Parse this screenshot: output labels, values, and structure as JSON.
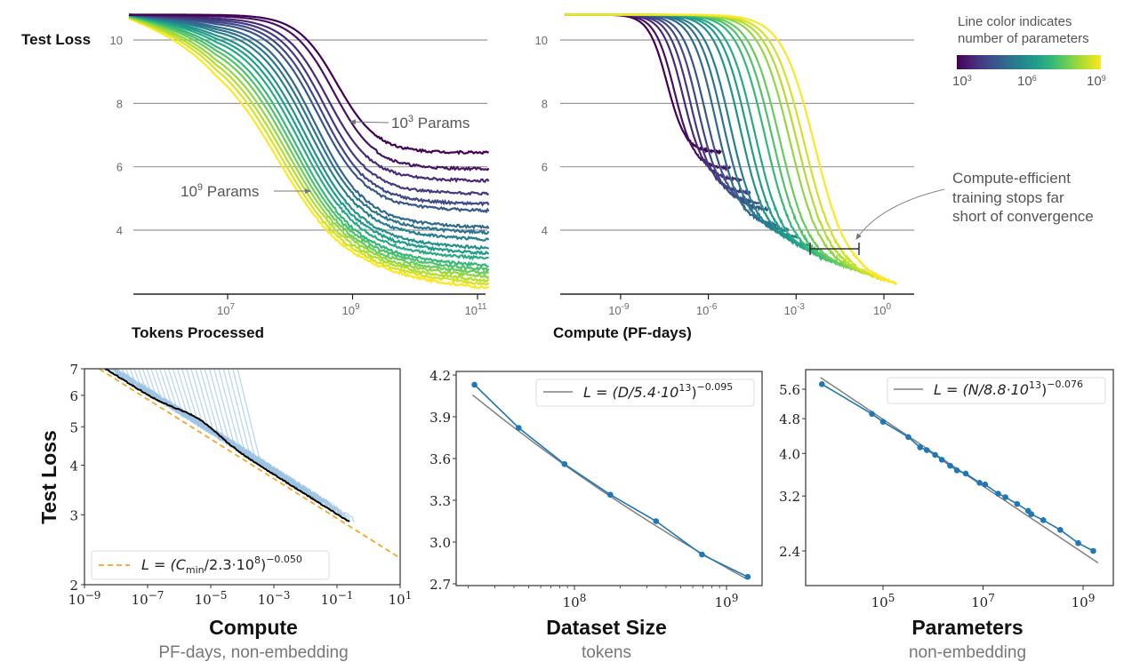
{
  "colors": {
    "viridis": [
      "#440154",
      "#482878",
      "#3e4a89",
      "#31688e",
      "#26828e",
      "#1f9e89",
      "#35b779",
      "#6ece58",
      "#b5de2b",
      "#fde725"
    ],
    "gridline": "#999999",
    "light_blue": "#9ec5e3",
    "fit_orange": "#f5a623",
    "point_blue": "#1f77b4",
    "fit_gray": "#808080",
    "black_frontier": "#000000"
  },
  "colorbar": {
    "title_line1": "Line color indicates",
    "title_line2": "number of parameters",
    "ticks": [
      {
        "base": "10",
        "exp": "3"
      },
      {
        "base": "10",
        "exp": "6"
      },
      {
        "base": "10",
        "exp": "9"
      }
    ]
  },
  "chart_data": [
    {
      "id": "tokens",
      "type": "line",
      "title": "",
      "ylabel": "Test Loss",
      "xlabel": "Tokens Processed",
      "xscale": "log",
      "xlim_log10": [
        5.3,
        11.2
      ],
      "ylim": [
        2.0,
        10.8
      ],
      "yticks": [
        10,
        8,
        6,
        4
      ],
      "xticks": [
        {
          "base": "10",
          "exp": "7",
          "log10": 7
        },
        {
          "base": "10",
          "exp": "9",
          "log10": 9
        },
        {
          "base": "10",
          "exp": "11",
          "log10": 11
        }
      ],
      "grid": "horizontal",
      "annotations": [
        {
          "text_base": "10",
          "text_exp": "3",
          "text_rest": " Params",
          "points_to": "smallest model curve"
        },
        {
          "text_base": "10",
          "text_exp": "9",
          "text_rest": " Params",
          "points_to": "largest model curve"
        }
      ],
      "series_note": "One curve per model size, colored by parameter count (10^3 to 10^9)",
      "series": [
        {
          "log10_params": 3.0,
          "final_loss": 6.45,
          "mid_log10_tokens": 8.75
        },
        {
          "log10_params": 3.3,
          "final_loss": 5.95,
          "mid_log10_tokens": 8.7
        },
        {
          "log10_params": 3.7,
          "final_loss": 5.6,
          "mid_log10_tokens": 8.6
        },
        {
          "log10_params": 4.0,
          "final_loss": 5.2,
          "mid_log10_tokens": 8.55
        },
        {
          "log10_params": 4.3,
          "final_loss": 4.9,
          "mid_log10_tokens": 8.5
        },
        {
          "log10_params": 4.6,
          "final_loss": 4.7,
          "mid_log10_tokens": 8.45
        },
        {
          "log10_params": 5.0,
          "final_loss": 4.2,
          "mid_log10_tokens": 8.4
        },
        {
          "log10_params": 5.3,
          "final_loss": 4.05,
          "mid_log10_tokens": 8.35
        },
        {
          "log10_params": 5.6,
          "final_loss": 3.85,
          "mid_log10_tokens": 8.3
        },
        {
          "log10_params": 6.0,
          "final_loss": 3.6,
          "mid_log10_tokens": 8.25
        },
        {
          "log10_params": 6.3,
          "final_loss": 3.45,
          "mid_log10_tokens": 8.2
        },
        {
          "log10_params": 6.6,
          "final_loss": 3.3,
          "mid_log10_tokens": 8.15
        },
        {
          "log10_params": 7.0,
          "final_loss": 3.1,
          "mid_log10_tokens": 8.1
        },
        {
          "log10_params": 7.3,
          "final_loss": 3.0,
          "mid_log10_tokens": 8.05
        },
        {
          "log10_params": 7.6,
          "final_loss": 2.9,
          "mid_log10_tokens": 8.0
        },
        {
          "log10_params": 8.0,
          "final_loss": 2.8,
          "mid_log10_tokens": 7.95
        },
        {
          "log10_params": 8.3,
          "final_loss": 2.7,
          "mid_log10_tokens": 7.9
        },
        {
          "log10_params": 8.6,
          "final_loss": 2.6,
          "mid_log10_tokens": 7.85
        },
        {
          "log10_params": 9.0,
          "final_loss": 2.5,
          "mid_log10_tokens": 7.8
        }
      ]
    },
    {
      "id": "compute_curves",
      "type": "line",
      "xlabel": "Compute (PF-days)",
      "xscale": "log",
      "xlim_log10": [
        -11.2,
        1.0
      ],
      "ylim": [
        2.0,
        10.8
      ],
      "yticks": [
        10,
        8,
        6,
        4
      ],
      "xticks": [
        {
          "base": "10",
          "exp": "-9",
          "log10": -9
        },
        {
          "base": "10",
          "exp": "-6",
          "log10": -6
        },
        {
          "base": "10",
          "exp": "-3",
          "log10": -3
        },
        {
          "base": "10",
          "exp": "0",
          "log10": 0
        }
      ],
      "grid": "horizontal",
      "annotation": {
        "line1": "Compute-efficient",
        "line2": "training stops far",
        "line3": "short of convergence"
      },
      "bracket": {
        "x_log10_range": [
          -2.6,
          -0.9
        ],
        "y": 3.5
      }
    },
    {
      "id": "compute_frontier",
      "type": "line",
      "ylabel": "Test Loss",
      "xlabel": "Compute",
      "xsublabel": "PF-days, non-embedding",
      "xscale": "log",
      "yscale": "log",
      "xlim_log10": [
        -9,
        1
      ],
      "ylim": [
        2,
        7
      ],
      "yticks": [
        2,
        3,
        4,
        5,
        6,
        7
      ],
      "xticks": [
        {
          "base": "10",
          "exp": "−9",
          "log10": -9
        },
        {
          "base": "10",
          "exp": "−7",
          "log10": -7
        },
        {
          "base": "10",
          "exp": "−5",
          "log10": -5
        },
        {
          "base": "10",
          "exp": "−3",
          "log10": -3
        },
        {
          "base": "10",
          "exp": "−1",
          "log10": -1
        },
        {
          "base": "10",
          "exp": "1",
          "log10": 1
        }
      ],
      "legend": {
        "location": "lower-left",
        "label": "L = (C_min/2.3·10^8)^−0.050",
        "label_main": "L = (C",
        "label_sub": "min",
        "label_mid": "/2.3·10",
        "label_sup1": "8",
        "label_close": ")",
        "label_sup2": "−0.050"
      },
      "fit": {
        "C0": 230000000.0,
        "alpha": 0.05
      },
      "frontier_log10_range": [
        -8.5,
        -0.6
      ]
    },
    {
      "id": "dataset_size",
      "type": "line",
      "xlabel": "Dataset Size",
      "xsublabel": "tokens",
      "xscale": "log",
      "xlim_log10": [
        7.25,
        9.2
      ],
      "ylim": [
        2.7,
        4.2
      ],
      "yticks": [
        "4.2",
        "3.9",
        "3.6",
        "3.3",
        "3.0",
        "2.7"
      ],
      "xticks": [
        {
          "base": "10",
          "exp": "8",
          "log10": 8
        },
        {
          "base": "10",
          "exp": "9",
          "log10": 9
        }
      ],
      "legend": {
        "location": "upper-right",
        "label_main": "L = (D/5.4·10",
        "label_sup1": "13",
        "label_close": ")",
        "label_sup2": "−0.095"
      },
      "fit": {
        "D0": 54000000000000.0,
        "alpha": 0.095
      },
      "points": [
        {
          "D": 22000000.0,
          "L": 4.13
        },
        {
          "D": 43000000.0,
          "L": 3.82
        },
        {
          "D": 86000000.0,
          "L": 3.56
        },
        {
          "D": 172000000.0,
          "L": 3.34
        },
        {
          "D": 344000000.0,
          "L": 3.15
        },
        {
          "D": 690000000.0,
          "L": 2.91
        },
        {
          "D": 1380000000.0,
          "L": 2.75
        }
      ]
    },
    {
      "id": "parameters",
      "type": "line",
      "xlabel": "Parameters",
      "xsublabel": "non-embedding",
      "xscale": "log",
      "yscale": "log",
      "xlim_log10": [
        3.45,
        9.55
      ],
      "ylim": [
        2.0,
        6.0
      ],
      "yticks": [
        "5.6",
        "4.8",
        "4.0",
        "3.2",
        "2.4"
      ],
      "xticks": [
        {
          "base": "10",
          "exp": "5",
          "log10": 5
        },
        {
          "base": "10",
          "exp": "7",
          "log10": 7
        },
        {
          "base": "10",
          "exp": "9",
          "log10": 9
        }
      ],
      "legend": {
        "location": "upper-right",
        "label_main": "L = (N/8.8·10",
        "label_sup1": "13",
        "label_close": ")",
        "label_sup2": "−0.076"
      },
      "fit": {
        "N0": 88000000000000.0,
        "alpha": 0.076
      },
      "points": [
        {
          "N": 6000.0,
          "L": 5.75
        },
        {
          "N": 60000.0,
          "L": 4.92
        },
        {
          "N": 100000.0,
          "L": 4.72
        },
        {
          "N": 320000.0,
          "L": 4.36
        },
        {
          "N": 550000.0,
          "L": 4.13
        },
        {
          "N": 750000.0,
          "L": 4.07
        },
        {
          "N": 1100000.0,
          "L": 3.97
        },
        {
          "N": 1500000.0,
          "L": 3.87
        },
        {
          "N": 2200000.0,
          "L": 3.75
        },
        {
          "N": 3000000.0,
          "L": 3.66
        },
        {
          "N": 4500000.0,
          "L": 3.6
        },
        {
          "N": 8500000.0,
          "L": 3.43
        },
        {
          "N": 11000000.0,
          "L": 3.4
        },
        {
          "N": 20000000.0,
          "L": 3.24
        },
        {
          "N": 28000000.0,
          "L": 3.18
        },
        {
          "N": 48000000.0,
          "L": 3.07
        },
        {
          "N": 80000000.0,
          "L": 2.96
        },
        {
          "N": 92000000.0,
          "L": 2.91
        },
        {
          "N": 160000000.0,
          "L": 2.82
        },
        {
          "N": 350000000.0,
          "L": 2.68
        },
        {
          "N": 800000000.0,
          "L": 2.5
        },
        {
          "N": 1600000000.0,
          "L": 2.4
        }
      ]
    }
  ]
}
